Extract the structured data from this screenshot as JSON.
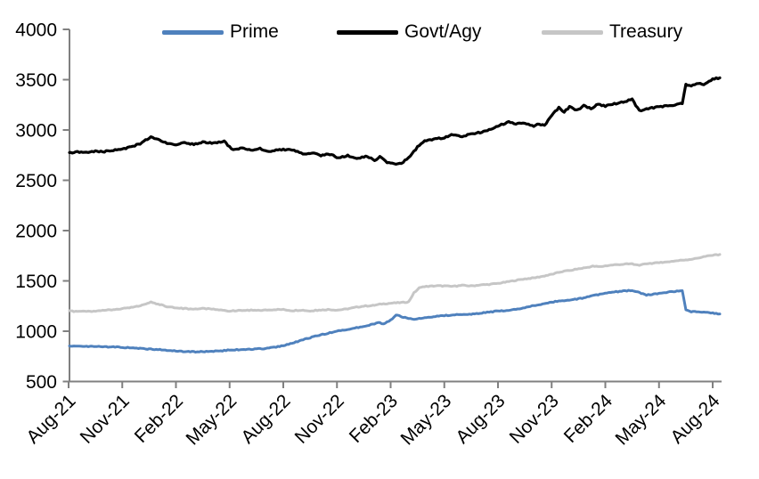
{
  "chart_data": {
    "type": "line",
    "title": "",
    "x_unit": "months since Aug-2021",
    "x_axis": {
      "tick_labels": [
        "Aug-21",
        "Nov-21",
        "Feb-22",
        "May-22",
        "Aug-22",
        "Nov-22",
        "Feb-23",
        "May-23",
        "Aug-23",
        "Nov-23",
        "Feb-24",
        "May-24",
        "Aug-24"
      ],
      "months_per_tick": 3,
      "label_rotation_deg": -45
    },
    "y_axis": {
      "min": 500,
      "max": 4000,
      "ticks": [
        500,
        1000,
        1500,
        2000,
        2500,
        3000,
        3500,
        4000
      ],
      "tick_labels": [
        "500",
        "1000",
        "1500",
        "2000",
        "2500",
        "3000",
        "3500",
        "4000"
      ]
    },
    "grid": "off",
    "legend": {
      "position": "top",
      "entries": [
        "Prime",
        "Govt/Agy",
        "Treasury"
      ]
    },
    "series": [
      {
        "name": "Prime",
        "color": "#4f81bd",
        "points": [
          [
            0,
            855
          ],
          [
            0.5,
            852
          ],
          [
            1,
            848
          ],
          [
            1.5,
            850
          ],
          [
            2,
            845
          ],
          [
            2.5,
            843
          ],
          [
            3,
            840
          ],
          [
            3.5,
            835
          ],
          [
            4,
            828
          ],
          [
            4.5,
            823
          ],
          [
            5,
            818
          ],
          [
            5.5,
            810
          ],
          [
            6,
            803
          ],
          [
            6.5,
            798
          ],
          [
            7,
            795
          ],
          [
            7.5,
            797
          ],
          [
            8,
            800
          ],
          [
            8.5,
            805
          ],
          [
            9,
            812
          ],
          [
            9.5,
            816
          ],
          [
            10,
            820
          ],
          [
            10.5,
            824
          ],
          [
            11,
            828
          ],
          [
            11.5,
            840
          ],
          [
            12,
            855
          ],
          [
            12.5,
            880
          ],
          [
            13,
            910
          ],
          [
            13.5,
            935
          ],
          [
            14,
            960
          ],
          [
            14.5,
            980
          ],
          [
            15,
            1000
          ],
          [
            15.5,
            1015
          ],
          [
            16,
            1030
          ],
          [
            16.5,
            1048
          ],
          [
            17,
            1070
          ],
          [
            17.3,
            1085
          ],
          [
            17.6,
            1075
          ],
          [
            18,
            1110
          ],
          [
            18.3,
            1163
          ],
          [
            18.7,
            1138
          ],
          [
            19.3,
            1115
          ],
          [
            19.7,
            1128
          ],
          [
            20.2,
            1140
          ],
          [
            20.6,
            1148
          ],
          [
            21,
            1155
          ],
          [
            21.6,
            1162
          ],
          [
            22,
            1165
          ],
          [
            22.6,
            1170
          ],
          [
            23,
            1180
          ],
          [
            23.6,
            1192
          ],
          [
            24,
            1200
          ],
          [
            24.6,
            1208
          ],
          [
            25,
            1220
          ],
          [
            25.5,
            1232
          ],
          [
            26,
            1255
          ],
          [
            26.5,
            1270
          ],
          [
            27,
            1290
          ],
          [
            27.5,
            1300
          ],
          [
            28,
            1310
          ],
          [
            28.5,
            1322
          ],
          [
            29,
            1340
          ],
          [
            29.5,
            1360
          ],
          [
            30,
            1375
          ],
          [
            30.5,
            1390
          ],
          [
            31,
            1398
          ],
          [
            31.5,
            1408
          ],
          [
            31.9,
            1385
          ],
          [
            32.3,
            1358
          ],
          [
            32.7,
            1370
          ],
          [
            33.2,
            1380
          ],
          [
            33.7,
            1395
          ],
          [
            34.1,
            1400
          ],
          [
            34.35,
            1398
          ],
          [
            34.45,
            1220
          ],
          [
            34.8,
            1195
          ],
          [
            35.2,
            1192
          ],
          [
            35.6,
            1188
          ],
          [
            36,
            1180
          ],
          [
            36.4,
            1172
          ]
        ]
      },
      {
        "name": "Govt/Agy",
        "color": "#000000",
        "points": [
          [
            0,
            2770
          ],
          [
            0.5,
            2785
          ],
          [
            1,
            2775
          ],
          [
            1.5,
            2790
          ],
          [
            2,
            2785
          ],
          [
            2.5,
            2800
          ],
          [
            3,
            2810
          ],
          [
            3.5,
            2830
          ],
          [
            4,
            2865
          ],
          [
            4.6,
            2930
          ],
          [
            5,
            2905
          ],
          [
            5.5,
            2870
          ],
          [
            6,
            2850
          ],
          [
            6.5,
            2875
          ],
          [
            7,
            2855
          ],
          [
            7.5,
            2880
          ],
          [
            8,
            2870
          ],
          [
            8.7,
            2885
          ],
          [
            9.2,
            2800
          ],
          [
            9.7,
            2820
          ],
          [
            10.2,
            2795
          ],
          [
            10.7,
            2815
          ],
          [
            11.2,
            2790
          ],
          [
            12,
            2805
          ],
          [
            12.6,
            2800
          ],
          [
            13.1,
            2760
          ],
          [
            13.6,
            2775
          ],
          [
            14.1,
            2745
          ],
          [
            14.6,
            2760
          ],
          [
            15.1,
            2720
          ],
          [
            15.6,
            2745
          ],
          [
            16.1,
            2710
          ],
          [
            16.6,
            2740
          ],
          [
            17.1,
            2700
          ],
          [
            17.4,
            2730
          ],
          [
            17.8,
            2680
          ],
          [
            18.3,
            2655
          ],
          [
            18.7,
            2680
          ],
          [
            19.1,
            2740
          ],
          [
            19.5,
            2830
          ],
          [
            19.9,
            2890
          ],
          [
            20.4,
            2905
          ],
          [
            21,
            2925
          ],
          [
            21.5,
            2955
          ],
          [
            22,
            2935
          ],
          [
            22.5,
            2960
          ],
          [
            23,
            2975
          ],
          [
            23.6,
            3010
          ],
          [
            24,
            3040
          ],
          [
            24.6,
            3080
          ],
          [
            25,
            3060
          ],
          [
            25.5,
            3070
          ],
          [
            26,
            3035
          ],
          [
            26.3,
            3060
          ],
          [
            26.6,
            3045
          ],
          [
            27,
            3145
          ],
          [
            27.4,
            3220
          ],
          [
            27.7,
            3180
          ],
          [
            28,
            3230
          ],
          [
            28.4,
            3195
          ],
          [
            28.8,
            3240
          ],
          [
            29.2,
            3215
          ],
          [
            29.6,
            3255
          ],
          [
            30,
            3235
          ],
          [
            30.5,
            3260
          ],
          [
            31,
            3280
          ],
          [
            31.5,
            3305
          ],
          [
            31.9,
            3190
          ],
          [
            32.3,
            3210
          ],
          [
            33,
            3230
          ],
          [
            33.5,
            3240
          ],
          [
            34,
            3255
          ],
          [
            34.35,
            3270
          ],
          [
            34.45,
            3450
          ],
          [
            34.8,
            3440
          ],
          [
            35.2,
            3465
          ],
          [
            35.5,
            3445
          ],
          [
            36,
            3505
          ],
          [
            36.4,
            3520
          ]
        ]
      },
      {
        "name": "Treasury",
        "color": "#c6c6c6",
        "points": [
          [
            0,
            1200
          ],
          [
            0.5,
            1195
          ],
          [
            1,
            1200
          ],
          [
            1.5,
            1195
          ],
          [
            2,
            1210
          ],
          [
            2.5,
            1215
          ],
          [
            3,
            1225
          ],
          [
            3.5,
            1235
          ],
          [
            4,
            1250
          ],
          [
            4.6,
            1290
          ],
          [
            5,
            1270
          ],
          [
            5.5,
            1245
          ],
          [
            6,
            1230
          ],
          [
            6.5,
            1225
          ],
          [
            7,
            1220
          ],
          [
            7.5,
            1225
          ],
          [
            8,
            1220
          ],
          [
            8.5,
            1210
          ],
          [
            9,
            1200
          ],
          [
            9.5,
            1205
          ],
          [
            10,
            1210
          ],
          [
            10.5,
            1205
          ],
          [
            11,
            1210
          ],
          [
            11.5,
            1215
          ],
          [
            12,
            1215
          ],
          [
            12.5,
            1205
          ],
          [
            13,
            1210
          ],
          [
            13.5,
            1200
          ],
          [
            14,
            1210
          ],
          [
            14.5,
            1215
          ],
          [
            15,
            1210
          ],
          [
            15.5,
            1220
          ],
          [
            16,
            1235
          ],
          [
            16.5,
            1250
          ],
          [
            17,
            1255
          ],
          [
            17.5,
            1270
          ],
          [
            18.1,
            1280
          ],
          [
            18.6,
            1285
          ],
          [
            19,
            1290
          ],
          [
            19.3,
            1380
          ],
          [
            19.6,
            1430
          ],
          [
            20,
            1445
          ],
          [
            20.5,
            1450
          ],
          [
            21,
            1450
          ],
          [
            21.5,
            1445
          ],
          [
            22,
            1455
          ],
          [
            22.5,
            1450
          ],
          [
            23,
            1460
          ],
          [
            23.5,
            1465
          ],
          [
            24,
            1475
          ],
          [
            24.5,
            1490
          ],
          [
            25,
            1505
          ],
          [
            25.5,
            1520
          ],
          [
            26,
            1530
          ],
          [
            26.5,
            1545
          ],
          [
            27,
            1565
          ],
          [
            27.5,
            1590
          ],
          [
            28,
            1605
          ],
          [
            28.5,
            1620
          ],
          [
            29,
            1635
          ],
          [
            29.3,
            1645
          ],
          [
            29.7,
            1640
          ],
          [
            30,
            1650
          ],
          [
            30.5,
            1660
          ],
          [
            31,
            1665
          ],
          [
            31.5,
            1670
          ],
          [
            31.9,
            1650
          ],
          [
            32.2,
            1670
          ],
          [
            33,
            1680
          ],
          [
            33.5,
            1690
          ],
          [
            34,
            1700
          ],
          [
            34.5,
            1710
          ],
          [
            35,
            1720
          ],
          [
            35.5,
            1740
          ],
          [
            36,
            1755
          ],
          [
            36.4,
            1760
          ]
        ]
      }
    ],
    "colors": {
      "axis": "#808080",
      "text": "#000000",
      "background": "#ffffff"
    }
  }
}
